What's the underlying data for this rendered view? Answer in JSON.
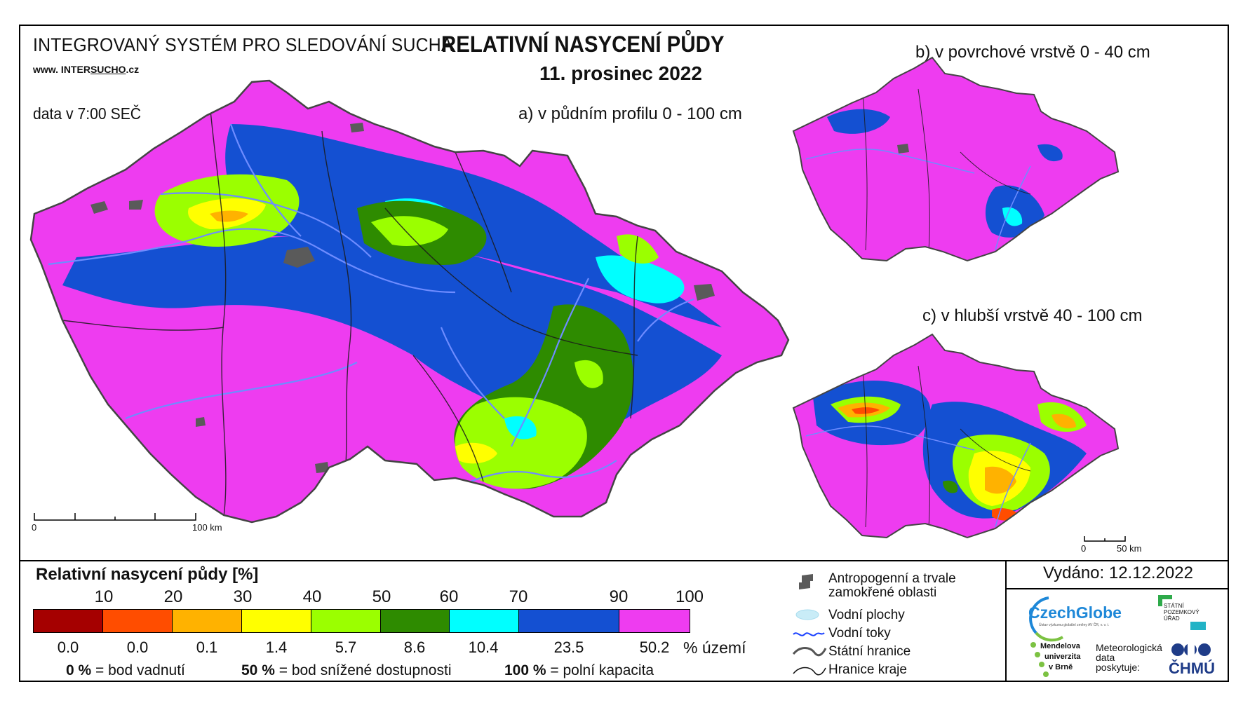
{
  "header": {
    "system_title": "INTEGROVANÝ SYSTÉM PRO SLEDOVÁNÍ SUCHA",
    "url_prefix": "www. INTER",
    "url_underlined": "SUCHO",
    "url_suffix": ".cz",
    "data_time": "data v 7:00 SEČ",
    "main_title": "RELATIVNÍ NASYCENÍ PŮDY",
    "date": "11. prosinec 2022"
  },
  "maps": {
    "a_label": "a) v půdním profilu 0 - 100 cm",
    "b_label": "b) v povrchové vrstvě 0 - 40 cm",
    "c_label": "c) v hlubší vrstvě 40 - 100 cm",
    "scale_main": {
      "zero": "0",
      "end": "100 km"
    },
    "scale_small": {
      "zero": "0",
      "end": "50 km"
    }
  },
  "legend": {
    "title": "Relativní nasycení půdy [%]",
    "ticks": [
      "10",
      "20",
      "30",
      "40",
      "50",
      "60",
      "70",
      "90",
      "100"
    ],
    "classes": [
      {
        "color": "#a50000",
        "share": "0.0"
      },
      {
        "color": "#ff4d00",
        "share": "0.0"
      },
      {
        "color": "#ffb200",
        "share": "0.1"
      },
      {
        "color": "#ffff00",
        "share": "1.4"
      },
      {
        "color": "#9bff00",
        "share": "5.7"
      },
      {
        "color": "#2e8b00",
        "share": "8.6"
      },
      {
        "color": "#00ffff",
        "share": "10.4"
      },
      {
        "color": "#1450d2",
        "share": "23.5"
      },
      {
        "color": "#ee3cf0",
        "share": "50.2"
      }
    ],
    "share_unit": "% území",
    "notes": [
      {
        "value": "0 %",
        "text": "= bod vadnutí"
      },
      {
        "value": "50 %",
        "text": "= bod snížené dostupnosti"
      },
      {
        "value": "100 %",
        "text": "= polní kapacita"
      }
    ],
    "symbols": [
      {
        "icon": "urban-area-icon",
        "label_1": "Antropogenní a trvale",
        "label_2": "zamokřené oblasti"
      },
      {
        "icon": "water-area-icon",
        "label_1": "Vodní plochy"
      },
      {
        "icon": "river-icon",
        "label_1": "Vodní toky"
      },
      {
        "icon": "state-border-icon",
        "label_1": "Státní hranice"
      },
      {
        "icon": "region-border-icon",
        "label_1": "Hranice kraje"
      }
    ]
  },
  "footer": {
    "issued": "Vydáno: 12.12.2022",
    "czechglobe": "CzechGlobe",
    "czechglobe_sub": "Ústav výzkumu globální změny AV ČR, v. v. i.",
    "spu_1": "STÁTNÍ",
    "spu_2": "POZEMKOVÝ",
    "spu_3": "ÚŘAD",
    "mendel_1": "Mendelova",
    "mendel_2": "univerzita",
    "mendel_3": "v Brně",
    "meteo_1": "Meteorologická",
    "meteo_2": "data",
    "meteo_3": "poskytuje:",
    "chmu": "ČHMÚ"
  },
  "colors": {
    "magenta": "#ee3cf0",
    "blue": "#1450d2",
    "cyan": "#00ffff",
    "green": "#2e8b00",
    "lime": "#9bff00",
    "yellow": "#ffff00",
    "orange": "#ffb200",
    "red": "#ff4d00",
    "urban": "#5a5a5a",
    "river": "#6e8cff"
  }
}
